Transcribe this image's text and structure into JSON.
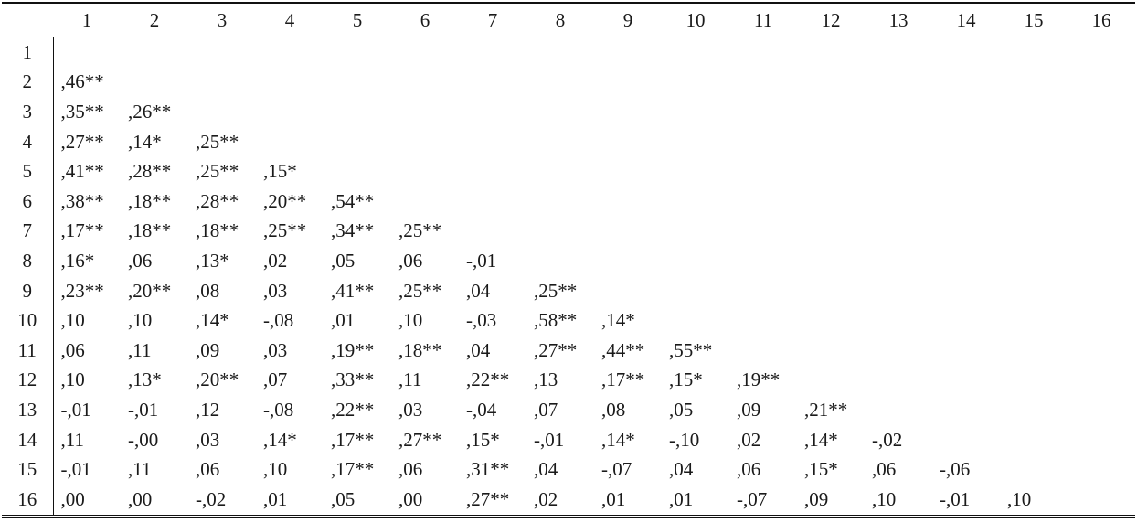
{
  "table": {
    "header": [
      "1",
      "2",
      "3",
      "4",
      "5",
      "6",
      "7",
      "8",
      "9",
      "10",
      "11",
      "12",
      "13",
      "14",
      "15",
      "16"
    ],
    "rows": [
      {
        "label": "1",
        "cells": []
      },
      {
        "label": "2",
        "cells": [
          ",46**"
        ]
      },
      {
        "label": "3",
        "cells": [
          ",35**",
          ",26**"
        ]
      },
      {
        "label": "4",
        "cells": [
          ",27**",
          ",14*",
          ",25**"
        ]
      },
      {
        "label": "5",
        "cells": [
          ",41**",
          ",28**",
          ",25**",
          ",15*"
        ]
      },
      {
        "label": "6",
        "cells": [
          ",38**",
          ",18**",
          ",28**",
          ",20**",
          ",54**"
        ]
      },
      {
        "label": "7",
        "cells": [
          ",17**",
          ",18**",
          ",18**",
          ",25**",
          ",34**",
          ",25**"
        ]
      },
      {
        "label": "8",
        "cells": [
          ",16*",
          ",06",
          ",13*",
          ",02",
          ",05",
          ",06",
          "-,01"
        ]
      },
      {
        "label": "9",
        "cells": [
          ",23**",
          ",20**",
          ",08",
          ",03",
          ",41**",
          ",25**",
          ",04",
          ",25**"
        ]
      },
      {
        "label": "10",
        "cells": [
          ",10",
          ",10",
          ",14*",
          "-,08",
          ",01",
          ",10",
          "-,03",
          ",58**",
          ",14*"
        ]
      },
      {
        "label": "11",
        "cells": [
          ",06",
          ",11",
          ",09",
          ",03",
          ",19**",
          ",18**",
          ",04",
          ",27**",
          ",44**",
          ",55**"
        ]
      },
      {
        "label": "12",
        "cells": [
          ",10",
          ",13*",
          ",20**",
          ",07",
          ",33**",
          ",11",
          ",22**",
          ",13",
          ",17**",
          ",15*",
          ",19**"
        ]
      },
      {
        "label": "13",
        "cells": [
          "-,01",
          "-,01",
          ",12",
          "-,08",
          ",22**",
          ",03",
          "-,04",
          ",07",
          ",08",
          ",05",
          ",09",
          ",21**"
        ]
      },
      {
        "label": "14",
        "cells": [
          ",11",
          "-,00",
          ",03",
          ",14*",
          ",17**",
          ",27**",
          ",15*",
          "-,01",
          ",14*",
          "-,10",
          ",02",
          ",14*",
          "-,02"
        ]
      },
      {
        "label": "15",
        "cells": [
          "-,01",
          ",11",
          ",06",
          ",10",
          ",17**",
          ",06",
          ",31**",
          ",04",
          "-,07",
          ",04",
          ",06",
          ",15*",
          ",06",
          "-,06"
        ]
      },
      {
        "label": "16",
        "cells": [
          ",00",
          ",00",
          "-,02",
          ",01",
          ",05",
          ",00",
          ",27**",
          ",02",
          ",01",
          ",01",
          "-,07",
          ",09",
          ",10",
          "-,01",
          ",10"
        ]
      }
    ]
  }
}
